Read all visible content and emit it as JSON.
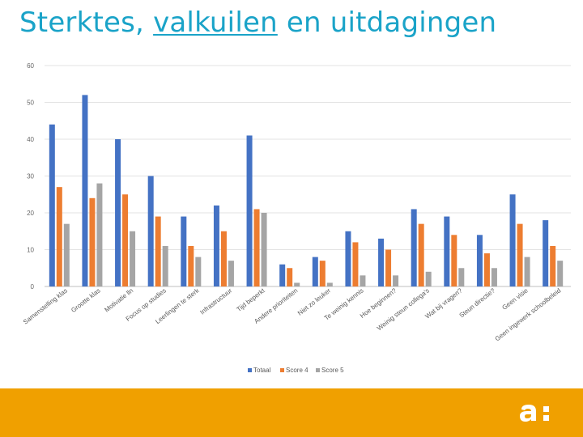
{
  "slide": {
    "title_part1": "Sterktes, ",
    "title_part2": "valkuilen",
    "title_part3": " en uitdagingen"
  },
  "colors": {
    "title": "#1aa3c8",
    "footer": "#f0a000",
    "series": [
      "#4472c4",
      "#ed7d31",
      "#a5a5a5"
    ]
  },
  "logo_icon": "a-colon-logo-icon",
  "chart_data": {
    "type": "bar",
    "categories": [
      "Samenstelling klas",
      "Grootte klas",
      "Motivatie lln",
      "Focus op studies",
      "Leerlingen te sterk",
      "Infrastructuur",
      "Tijd beperkt",
      "Andere prioriteiten",
      "Niet zo leuker",
      "Te weinig kennis",
      "Hoe beginnen?",
      "Weinig steun collega's",
      "Wat bij vragen?",
      "Steun directie?",
      "Geen visie",
      "Geen ingewerk schoolbeleid"
    ],
    "series": [
      {
        "name": "Totaal",
        "values": [
          44,
          52,
          40,
          30,
          19,
          22,
          41,
          6,
          8,
          15,
          13,
          21,
          19,
          14,
          25,
          18
        ]
      },
      {
        "name": "Score 4",
        "values": [
          27,
          24,
          25,
          19,
          11,
          15,
          21,
          5,
          7,
          12,
          10,
          17,
          14,
          9,
          17,
          11
        ]
      },
      {
        "name": "Score 5",
        "values": [
          17,
          28,
          15,
          11,
          8,
          7,
          20,
          1,
          1,
          3,
          3,
          4,
          5,
          5,
          8,
          7
        ]
      }
    ],
    "yticks": [
      "0",
      "10",
      "20",
      "30",
      "40",
      "50",
      "60"
    ],
    "ylim": [
      0,
      60
    ],
    "grid": true,
    "legend": "bottom-center"
  }
}
